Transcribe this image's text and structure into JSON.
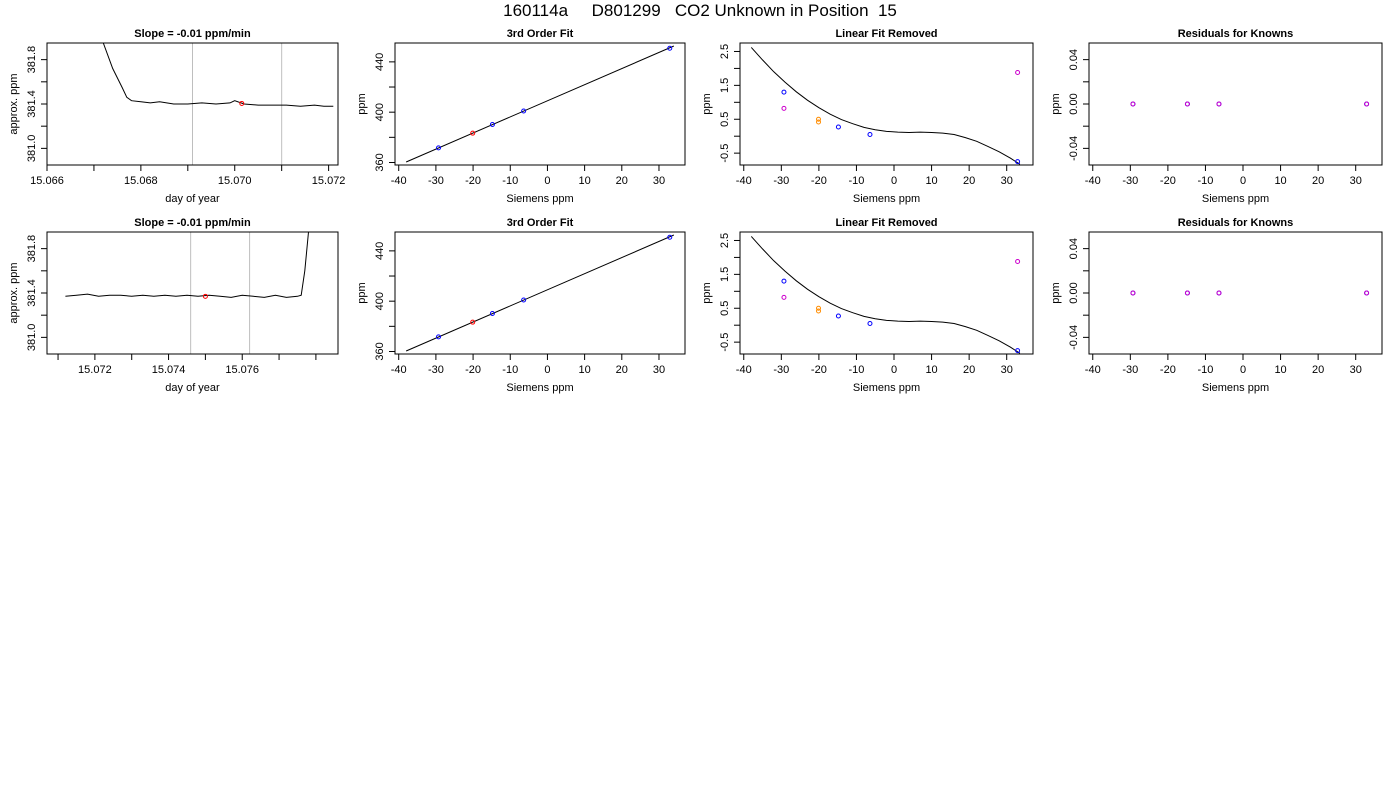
{
  "page_title": "160114a     D801299   CO2 Unknown in Position  15",
  "colors": {
    "line": "#000000",
    "ref_line": "#bebebe",
    "known": "#0000ff",
    "unknown": "#ff0000",
    "flagged": "#cc00cc",
    "orange": "#ff8c00"
  },
  "chart_data": [
    {
      "type": "line",
      "title": "Slope =  -0.01  ppm/min",
      "xlabel": "day of year",
      "ylabel": "approx. ppm",
      "xlim": [
        15.066,
        15.0722
      ],
      "ylim": [
        380.85,
        381.95
      ],
      "xticks": [
        15.066,
        15.067,
        15.068,
        15.069,
        15.07,
        15.071,
        15.072
      ],
      "xtick_labels": [
        "15.066",
        "",
        "15.068",
        "",
        "15.070",
        "",
        "15.072"
      ],
      "yticks": [
        381.0,
        381.2,
        381.4,
        381.6,
        381.8
      ],
      "ytick_labels": [
        "381.0",
        "",
        "381.4",
        "",
        "381.8"
      ],
      "ref_lines_x": [
        15.0691,
        15.071
      ],
      "series": [
        {
          "role": "trace",
          "x": [
            15.0672,
            15.0674,
            15.0676,
            15.0677,
            15.0678,
            15.068,
            15.0682,
            15.0684,
            15.0687,
            15.069,
            15.0693,
            15.0696,
            15.0699,
            15.07,
            15.0702,
            15.0705,
            15.0708,
            15.0711,
            15.0714,
            15.0717,
            15.0719,
            15.0721
          ],
          "y": [
            381.95,
            381.72,
            381.55,
            381.46,
            381.43,
            381.42,
            381.41,
            381.42,
            381.4,
            381.4,
            381.41,
            381.4,
            381.41,
            381.43,
            381.4,
            381.39,
            381.39,
            381.39,
            381.38,
            381.39,
            381.38,
            381.38
          ]
        },
        {
          "role": "unknown",
          "x": [
            15.07015
          ],
          "y": [
            381.405
          ]
        }
      ]
    },
    {
      "type": "scatter",
      "title": "3rd Order Fit",
      "xlabel": "Siemens ppm",
      "ylabel": "ppm",
      "xlim": [
        -41,
        37
      ],
      "ylim": [
        358,
        455
      ],
      "xticks": [
        -40,
        -30,
        -20,
        -10,
        0,
        10,
        20,
        30
      ],
      "xtick_labels": [
        "-40",
        "-30",
        "-20",
        "-10",
        "0",
        "10",
        "20",
        "30"
      ],
      "yticks": [
        360,
        380,
        400,
        420,
        440
      ],
      "ytick_labels": [
        "360",
        "",
        "400",
        "",
        "440"
      ],
      "fit_line": [
        [
          -38,
          360.4
        ],
        [
          34,
          452.6
        ]
      ],
      "series": [
        {
          "role": "known",
          "x": [
            -29.3,
            -14.8,
            -6.4,
            32.9
          ],
          "y": [
            371.6,
            390.2,
            400.9,
            450.8
          ]
        },
        {
          "role": "unknown",
          "x": [
            -20.1
          ],
          "y": [
            383.3
          ]
        }
      ]
    },
    {
      "type": "scatter",
      "title": "Linear Fit Removed",
      "xlabel": "Siemens ppm",
      "ylabel": "ppm",
      "xlim": [
        -41,
        37
      ],
      "ylim": [
        -0.85,
        2.75
      ],
      "xticks": [
        -40,
        -30,
        -20,
        -10,
        0,
        10,
        20,
        30
      ],
      "xtick_labels": [
        "-40",
        "-30",
        "-20",
        "-10",
        "0",
        "10",
        "20",
        "30"
      ],
      "yticks": [
        -0.5,
        0.0,
        0.5,
        1.0,
        1.5,
        2.0,
        2.5
      ],
      "ytick_labels": [
        "-0.5",
        "",
        "0.5",
        "",
        "1.5",
        "",
        "2.5"
      ],
      "curve": {
        "x": [
          -38,
          -35,
          -32,
          -29,
          -26,
          -23,
          -20,
          -17,
          -14,
          -11,
          -8,
          -5,
          -2,
          1,
          4,
          7,
          10,
          13,
          16,
          19,
          22,
          25,
          28,
          31,
          33.5
        ],
        "y": [
          2.62,
          2.25,
          1.9,
          1.59,
          1.31,
          1.06,
          0.84,
          0.65,
          0.49,
          0.37,
          0.26,
          0.19,
          0.14,
          0.12,
          0.11,
          0.12,
          0.11,
          0.09,
          0.05,
          -0.04,
          -0.15,
          -0.3,
          -0.46,
          -0.65,
          -0.83
        ]
      },
      "series": [
        {
          "role": "known",
          "x": [
            -29.3,
            -14.8,
            -6.4,
            32.9
          ],
          "y": [
            1.3,
            0.27,
            0.05,
            -0.75
          ]
        },
        {
          "role": "orange",
          "x": [
            -20.1
          ],
          "y": [
            0.5
          ]
        },
        {
          "role": "orange",
          "x": [
            -20.1
          ],
          "y": [
            0.42
          ]
        },
        {
          "role": "flagged",
          "x": [
            -29.3,
            32.9
          ],
          "y": [
            0.82,
            1.88
          ]
        }
      ]
    },
    {
      "type": "scatter",
      "title": "Residuals for Knowns",
      "xlabel": "Siemens ppm",
      "ylabel": "ppm",
      "xlim": [
        -41,
        37
      ],
      "ylim": [
        -0.055,
        0.055
      ],
      "xticks": [
        -40,
        -30,
        -20,
        -10,
        0,
        10,
        20,
        30
      ],
      "xtick_labels": [
        "-40",
        "-30",
        "-20",
        "-10",
        "0",
        "10",
        "20",
        "30"
      ],
      "yticks": [
        -0.04,
        -0.02,
        0.0,
        0.02,
        0.04
      ],
      "ytick_labels": [
        "-0.04",
        "",
        "0.00",
        "",
        "0.04"
      ],
      "series": [
        {
          "role": "known",
          "x": [
            -29.3,
            -14.8,
            -6.4,
            32.9
          ],
          "y": [
            0.0,
            0.0,
            0.0,
            0.0
          ]
        },
        {
          "role": "flagged",
          "x": [
            -29.3,
            -14.8,
            -6.4,
            32.9
          ],
          "y": [
            0.0,
            0.0,
            0.0,
            0.0
          ]
        }
      ]
    },
    {
      "type": "line",
      "title": "Slope =  -0.01  ppm/min",
      "xlabel": "day of year",
      "ylabel": "approx. ppm",
      "xlim": [
        15.0707,
        15.0786
      ],
      "ylim": [
        380.85,
        381.95
      ],
      "xticks": [
        15.071,
        15.072,
        15.073,
        15.074,
        15.075,
        15.076,
        15.077,
        15.078
      ],
      "xtick_labels": [
        "",
        "15.072",
        "",
        "15.074",
        "",
        "15.076",
        "",
        ""
      ],
      "yticks": [
        381.0,
        381.2,
        381.4,
        381.6,
        381.8
      ],
      "ytick_labels": [
        "381.0",
        "",
        "381.4",
        "",
        "381.8"
      ],
      "ref_lines_x": [
        15.0746,
        15.0762
      ],
      "series": [
        {
          "role": "trace",
          "x": [
            15.0712,
            15.0715,
            15.0718,
            15.0721,
            15.0724,
            15.0727,
            15.073,
            15.0733,
            15.0736,
            15.0739,
            15.0742,
            15.0745,
            15.0748,
            15.0751,
            15.0754,
            15.0757,
            15.076,
            15.0763,
            15.0766,
            15.0769,
            15.0772,
            15.0775,
            15.0776,
            15.0777,
            15.0778
          ],
          "y": [
            381.37,
            381.38,
            381.39,
            381.37,
            381.38,
            381.38,
            381.37,
            381.38,
            381.37,
            381.38,
            381.37,
            381.38,
            381.37,
            381.38,
            381.37,
            381.36,
            381.38,
            381.37,
            381.36,
            381.38,
            381.36,
            381.37,
            381.38,
            381.6,
            381.95
          ]
        },
        {
          "role": "unknown",
          "x": [
            15.075
          ],
          "y": [
            381.37
          ]
        }
      ]
    },
    {
      "type": "scatter",
      "title": "3rd Order Fit",
      "xlabel": "Siemens ppm",
      "ylabel": "ppm",
      "xlim": [
        -41,
        37
      ],
      "ylim": [
        358,
        455
      ],
      "xticks": [
        -40,
        -30,
        -20,
        -10,
        0,
        10,
        20,
        30
      ],
      "xtick_labels": [
        "-40",
        "-30",
        "-20",
        "-10",
        "0",
        "10",
        "20",
        "30"
      ],
      "yticks": [
        360,
        380,
        400,
        420,
        440
      ],
      "ytick_labels": [
        "360",
        "",
        "400",
        "",
        "440"
      ],
      "fit_line": [
        [
          -38,
          360.4
        ],
        [
          34,
          452.6
        ]
      ],
      "series": [
        {
          "role": "known",
          "x": [
            -29.3,
            -14.8,
            -6.4,
            32.9
          ],
          "y": [
            371.6,
            390.2,
            400.9,
            450.8
          ]
        },
        {
          "role": "unknown",
          "x": [
            -20.1
          ],
          "y": [
            383.3
          ]
        }
      ]
    },
    {
      "type": "scatter",
      "title": "Linear Fit Removed",
      "xlabel": "Siemens ppm",
      "ylabel": "ppm",
      "xlim": [
        -41,
        37
      ],
      "ylim": [
        -0.85,
        2.75
      ],
      "xticks": [
        -40,
        -30,
        -20,
        -10,
        0,
        10,
        20,
        30
      ],
      "xtick_labels": [
        "-40",
        "-30",
        "-20",
        "-10",
        "0",
        "10",
        "20",
        "30"
      ],
      "yticks": [
        -0.5,
        0.0,
        0.5,
        1.0,
        1.5,
        2.0,
        2.5
      ],
      "ytick_labels": [
        "-0.5",
        "",
        "0.5",
        "",
        "1.5",
        "",
        "2.5"
      ],
      "curve": {
        "x": [
          -38,
          -35,
          -32,
          -29,
          -26,
          -23,
          -20,
          -17,
          -14,
          -11,
          -8,
          -5,
          -2,
          1,
          4,
          7,
          10,
          13,
          16,
          19,
          22,
          25,
          28,
          31,
          33.5
        ],
        "y": [
          2.62,
          2.25,
          1.9,
          1.59,
          1.31,
          1.06,
          0.84,
          0.65,
          0.49,
          0.37,
          0.26,
          0.19,
          0.14,
          0.12,
          0.11,
          0.12,
          0.11,
          0.09,
          0.05,
          -0.04,
          -0.15,
          -0.3,
          -0.46,
          -0.65,
          -0.83
        ]
      },
      "series": [
        {
          "role": "known",
          "x": [
            -29.3,
            -14.8,
            -6.4,
            32.9
          ],
          "y": [
            1.3,
            0.27,
            0.05,
            -0.75
          ]
        },
        {
          "role": "orange",
          "x": [
            -20.1
          ],
          "y": [
            0.5
          ]
        },
        {
          "role": "orange",
          "x": [
            -20.1
          ],
          "y": [
            0.42
          ]
        },
        {
          "role": "flagged",
          "x": [
            -29.3,
            32.9
          ],
          "y": [
            0.82,
            1.88
          ]
        }
      ]
    },
    {
      "type": "scatter",
      "title": "Residuals for Knowns",
      "xlabel": "Siemens ppm",
      "ylabel": "ppm",
      "xlim": [
        -41,
        37
      ],
      "ylim": [
        -0.055,
        0.055
      ],
      "xticks": [
        -40,
        -30,
        -20,
        -10,
        0,
        10,
        20,
        30
      ],
      "xtick_labels": [
        "-40",
        "-30",
        "-20",
        "-10",
        "0",
        "10",
        "20",
        "30"
      ],
      "yticks": [
        -0.04,
        -0.02,
        0.0,
        0.02,
        0.04
      ],
      "ytick_labels": [
        "-0.04",
        "",
        "0.00",
        "",
        "0.04"
      ],
      "series": [
        {
          "role": "known",
          "x": [
            -29.3,
            -14.8,
            -6.4,
            32.9
          ],
          "y": [
            0.0,
            0.0,
            0.0,
            0.0
          ]
        },
        {
          "role": "flagged",
          "x": [
            -29.3,
            -14.8,
            -6.4,
            32.9
          ],
          "y": [
            0.0,
            0.0,
            0.0,
            0.0
          ]
        }
      ]
    }
  ]
}
